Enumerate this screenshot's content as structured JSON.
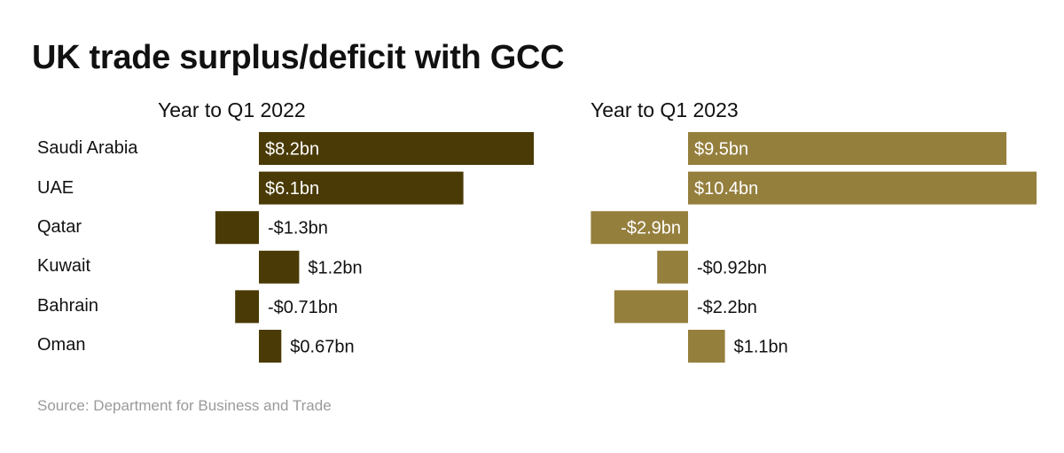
{
  "title": "UK trade surplus/deficit with GCC",
  "source": "Source: Department for Business and Trade",
  "colors": {
    "2022": "#4a3a05",
    "2023": "#957f3d"
  },
  "chart_data": {
    "type": "bar",
    "orientation": "horizontal",
    "title": "UK trade surplus/deficit with GCC",
    "categories": [
      "Saudi Arabia",
      "UAE",
      "Qatar",
      "Kuwait",
      "Bahrain",
      "Oman"
    ],
    "panels": [
      {
        "title": "Year to Q1 2022",
        "color": "#4a3a05",
        "values": [
          8.2,
          6.1,
          -1.3,
          1.2,
          -0.71,
          0.67
        ],
        "labels": [
          "$8.2bn",
          "$6.1bn",
          "-$1.3bn",
          "$1.2bn",
          "-$0.71bn",
          "$0.67bn"
        ]
      },
      {
        "title": "Year to Q1 2023",
        "color": "#957f3d",
        "values": [
          9.5,
          10.4,
          -2.9,
          -0.92,
          -2.2,
          1.1
        ],
        "labels": [
          "$9.5bn",
          "$10.4bn",
          "-$2.9bn",
          "-$0.92bn",
          "-$2.2bn",
          "$1.1bn"
        ]
      }
    ],
    "unit": "bn",
    "grid": false,
    "legend": "none"
  }
}
